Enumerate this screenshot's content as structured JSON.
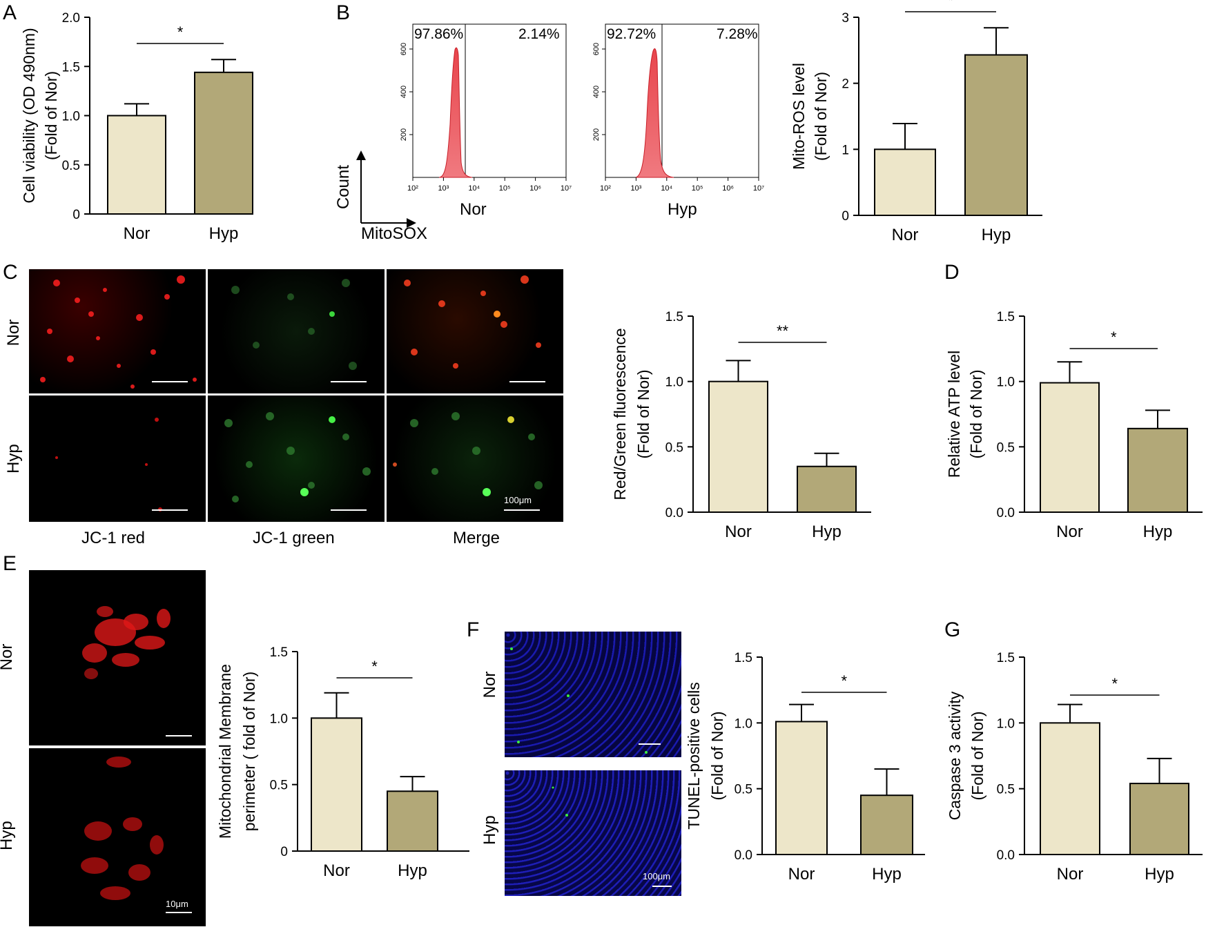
{
  "panels": {
    "A": "A",
    "B": "B",
    "C": "C",
    "D": "D",
    "E": "E",
    "F": "F",
    "G": "G"
  },
  "colors": {
    "nor": "#ede6c9",
    "hyp": "#b2a878",
    "axis": "#000000",
    "flow": "#e8454c"
  },
  "flow": {
    "axis_title_y": "Count",
    "axis_title_x": "MitoSOX",
    "yticks": [
      "200",
      "400",
      "600"
    ],
    "xticks": [
      "10²",
      "10³",
      "10⁴",
      "10⁵",
      "10⁶",
      "10⁷"
    ],
    "nor": {
      "label": "Nor",
      "left_pct": "97.86%",
      "right_pct": "2.14%"
    },
    "hyp": {
      "label": "Hyp",
      "left_pct": "92.72%",
      "right_pct": "7.28%"
    }
  },
  "jc1": {
    "rows": [
      "Nor",
      "Hyp"
    ],
    "cols": [
      "JC-1 red",
      "JC-1 green",
      "Merge"
    ],
    "scale_label": "100μm"
  },
  "mito_images": {
    "rows": [
      "Nor",
      "Hyp"
    ],
    "scale_label": "10μm"
  },
  "tunel_images": {
    "rows": [
      "Nor",
      "Hyp"
    ],
    "scale_label": "100μm"
  },
  "chart_data": [
    {
      "id": "A",
      "type": "bar",
      "categories": [
        "Nor",
        "Hyp"
      ],
      "values": [
        1.0,
        1.44
      ],
      "errors": [
        0.12,
        0.13
      ],
      "ylabel": "Cell viability (OD 490nm)",
      "ylabel2": "(Fold of Nor)",
      "ylim": [
        0,
        2.0
      ],
      "yticks": [
        "0",
        "0.5",
        "1.0",
        "1.5",
        "2.0"
      ],
      "sig": "*"
    },
    {
      "id": "B",
      "type": "bar",
      "categories": [
        "Nor",
        "Hyp"
      ],
      "values": [
        1.0,
        2.43
      ],
      "errors": [
        0.39,
        0.41
      ],
      "ylabel": "Mito-ROS level",
      "ylabel2": "(Fold of Nor)",
      "ylim": [
        0,
        3
      ],
      "yticks": [
        "0",
        "1",
        "2",
        "3"
      ],
      "sig": "*"
    },
    {
      "id": "C",
      "type": "bar",
      "categories": [
        "Nor",
        "Hyp"
      ],
      "values": [
        1.0,
        0.35
      ],
      "errors": [
        0.16,
        0.1
      ],
      "ylabel": "Red/Green fluorescence",
      "ylabel2": "(Fold of Nor)",
      "ylim": [
        0,
        1.5
      ],
      "yticks": [
        "0.0",
        "0.5",
        "1.0",
        "1.5"
      ],
      "sig": "**"
    },
    {
      "id": "D",
      "type": "bar",
      "categories": [
        "Nor",
        "Hyp"
      ],
      "values": [
        0.99,
        0.64
      ],
      "errors": [
        0.16,
        0.14
      ],
      "ylabel": "Relative ATP level",
      "ylabel2": "(Fold of Nor)",
      "ylim": [
        0,
        1.5
      ],
      "yticks": [
        "0.0",
        "0.5",
        "1.0",
        "1.5"
      ],
      "sig": "*"
    },
    {
      "id": "E",
      "type": "bar",
      "categories": [
        "Nor",
        "Hyp"
      ],
      "values": [
        1.0,
        0.45
      ],
      "errors": [
        0.19,
        0.11
      ],
      "ylabel": "Mitochondrial Membrane",
      "ylabel2": "perimeter ( fold of Nor)",
      "ylim": [
        0,
        1.5
      ],
      "yticks": [
        "0",
        "0.5",
        "1.0",
        "1.5"
      ],
      "sig": "*"
    },
    {
      "id": "F",
      "type": "bar",
      "categories": [
        "Nor",
        "Hyp"
      ],
      "values": [
        1.01,
        0.45
      ],
      "errors": [
        0.13,
        0.2
      ],
      "ylabel": "TUNEL-positive cells",
      "ylabel2": "(Fold of Nor)",
      "ylim": [
        0,
        1.5
      ],
      "yticks": [
        "0.0",
        "0.5",
        "1.0",
        "1.5"
      ],
      "sig": "*"
    },
    {
      "id": "G",
      "type": "bar",
      "categories": [
        "Nor",
        "Hyp"
      ],
      "values": [
        1.0,
        0.54
      ],
      "errors": [
        0.14,
        0.19
      ],
      "ylabel": "Caspase 3 activity",
      "ylabel2": "(Fold of Nor)",
      "ylim": [
        0,
        1.5
      ],
      "yticks": [
        "0.0",
        "0.5",
        "1.0",
        "1.5"
      ],
      "sig": "*"
    }
  ]
}
